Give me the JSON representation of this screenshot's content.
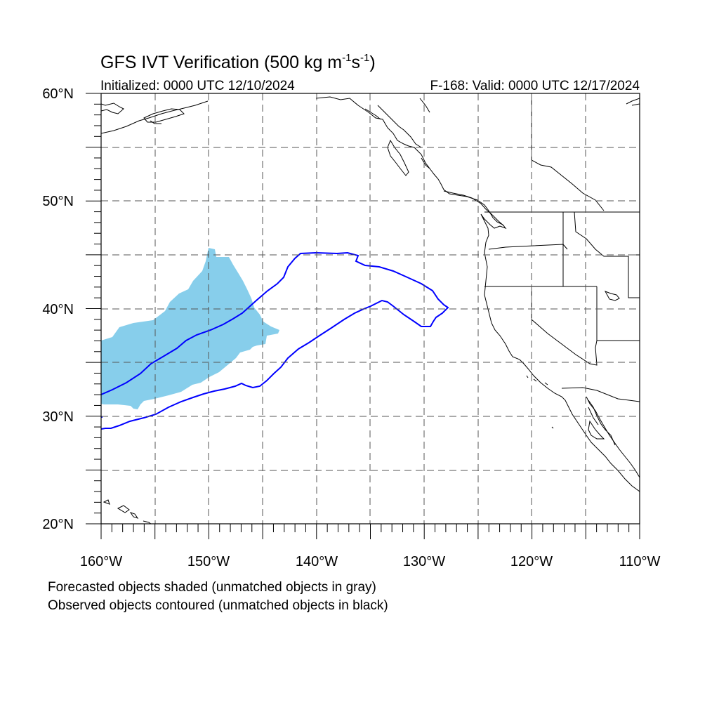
{
  "title": {
    "main": "GFS IVT Verification (500 kg m",
    "sup1": "-1",
    "mid": "s",
    "sup2": "-1",
    "end": ")"
  },
  "subtitle_left": "Initialized: 0000 UTC 12/10/2024",
  "subtitle_right": "F-168: Valid: 0000 UTC 12/17/2024",
  "notes": [
    "Forecasted objects shaded (unmatched objects in gray)",
    "Observed objects contoured (unmatched objects in black)"
  ],
  "map": {
    "lon_range": [
      -160,
      -110
    ],
    "lat_range": [
      20,
      60
    ],
    "lon_labels": [
      "160°W",
      "150°W",
      "140°W",
      "130°W",
      "120°W",
      "110°W"
    ],
    "lat_labels": [
      "20°N",
      "30°N",
      "40°N",
      "50°N",
      "60°N"
    ],
    "grid": "dashed every 5°",
    "colors": {
      "forecast_object": "#87ceeb",
      "observed_contour": "#0000ff",
      "coastline": "#000000"
    }
  }
}
